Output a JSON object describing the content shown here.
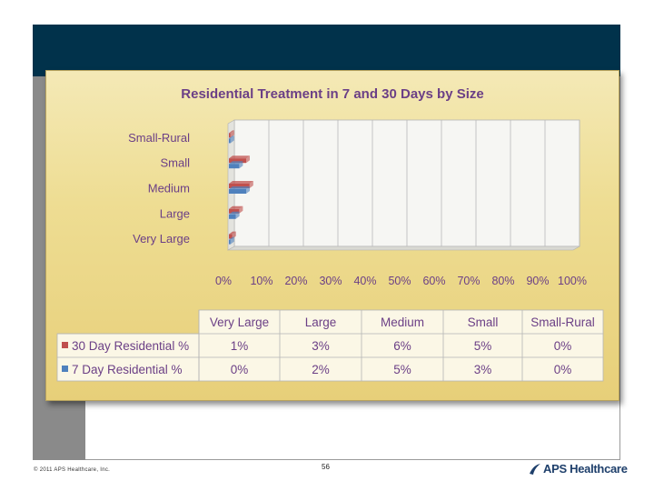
{
  "footer": {
    "copyright": "© 2011 APS Healthcare, Inc.",
    "page_number": "56",
    "logo_text": "APS Healthcare"
  },
  "colors": {
    "series_30_day": "#c0504d",
    "series_7_day": "#4f81bd",
    "header_bar": "#01324b"
  },
  "chart_data": {
    "type": "bar",
    "orientation": "horizontal-3d",
    "title": "Residential Treatment in 7 and 30 Days by Size",
    "categories": [
      "Very Large",
      "Large",
      "Medium",
      "Small",
      "Small-Rural"
    ],
    "axis_categories_top_to_bottom": [
      "Small-Rural",
      "Small",
      "Medium",
      "Large",
      "Very Large"
    ],
    "x_ticks": [
      "0%",
      "10%",
      "20%",
      "30%",
      "40%",
      "50%",
      "60%",
      "70%",
      "80%",
      "90%",
      "100%"
    ],
    "xlim": [
      0,
      100
    ],
    "series": [
      {
        "name": "30 Day Residential %",
        "values": [
          1,
          3,
          6,
          5,
          0
        ],
        "labels": [
          "1%",
          "3%",
          "6%",
          "5%",
          "0%"
        ]
      },
      {
        "name": "7 Day Residential %",
        "values": [
          0,
          2,
          5,
          3,
          0
        ],
        "labels": [
          "0%",
          "2%",
          "5%",
          "3%",
          "0%"
        ]
      }
    ],
    "data_table": true,
    "legend": "in data table"
  }
}
